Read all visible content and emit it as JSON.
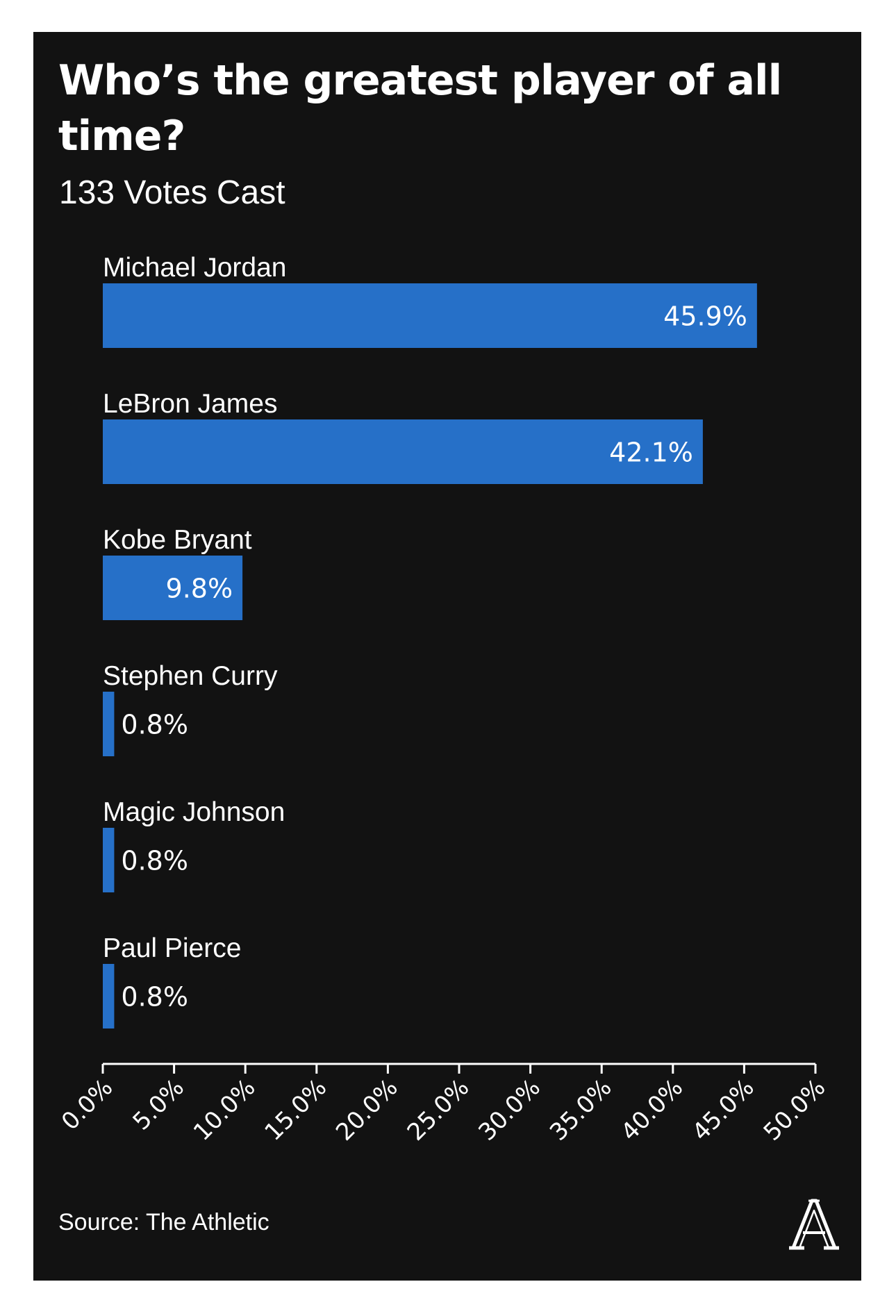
{
  "chart_data": {
    "type": "bar",
    "orientation": "horizontal",
    "title": "Who’s the greatest player of all time?",
    "subtitle": "133 Votes Cast",
    "categories": [
      "Michael Jordan",
      "LeBron James",
      "Kobe Bryant",
      "Stephen Curry",
      "Magic Johnson",
      "Paul Pierce"
    ],
    "values": [
      45.9,
      42.1,
      9.8,
      0.8,
      0.8,
      0.8
    ],
    "value_labels": [
      "45.9%",
      "42.1%",
      "9.8%",
      "0.8%",
      "0.8%",
      "0.8%"
    ],
    "xlim": [
      0,
      50
    ],
    "x_ticks": [
      "0.0%",
      "5.0%",
      "10.0%",
      "15.0%",
      "20.0%",
      "25.0%",
      "30.0%",
      "35.0%",
      "40.0%",
      "45.0%",
      "50.0%"
    ],
    "xlabel": "",
    "ylabel": "",
    "grid": false,
    "legend": "none",
    "source": "Source: The Athletic",
    "colors": {
      "bar": "#2670c8",
      "background": "#121212",
      "text": "#ffffff",
      "page": "#ffffff"
    }
  },
  "logo": {
    "icon": "the-athletic-logo-icon",
    "text": "A"
  }
}
